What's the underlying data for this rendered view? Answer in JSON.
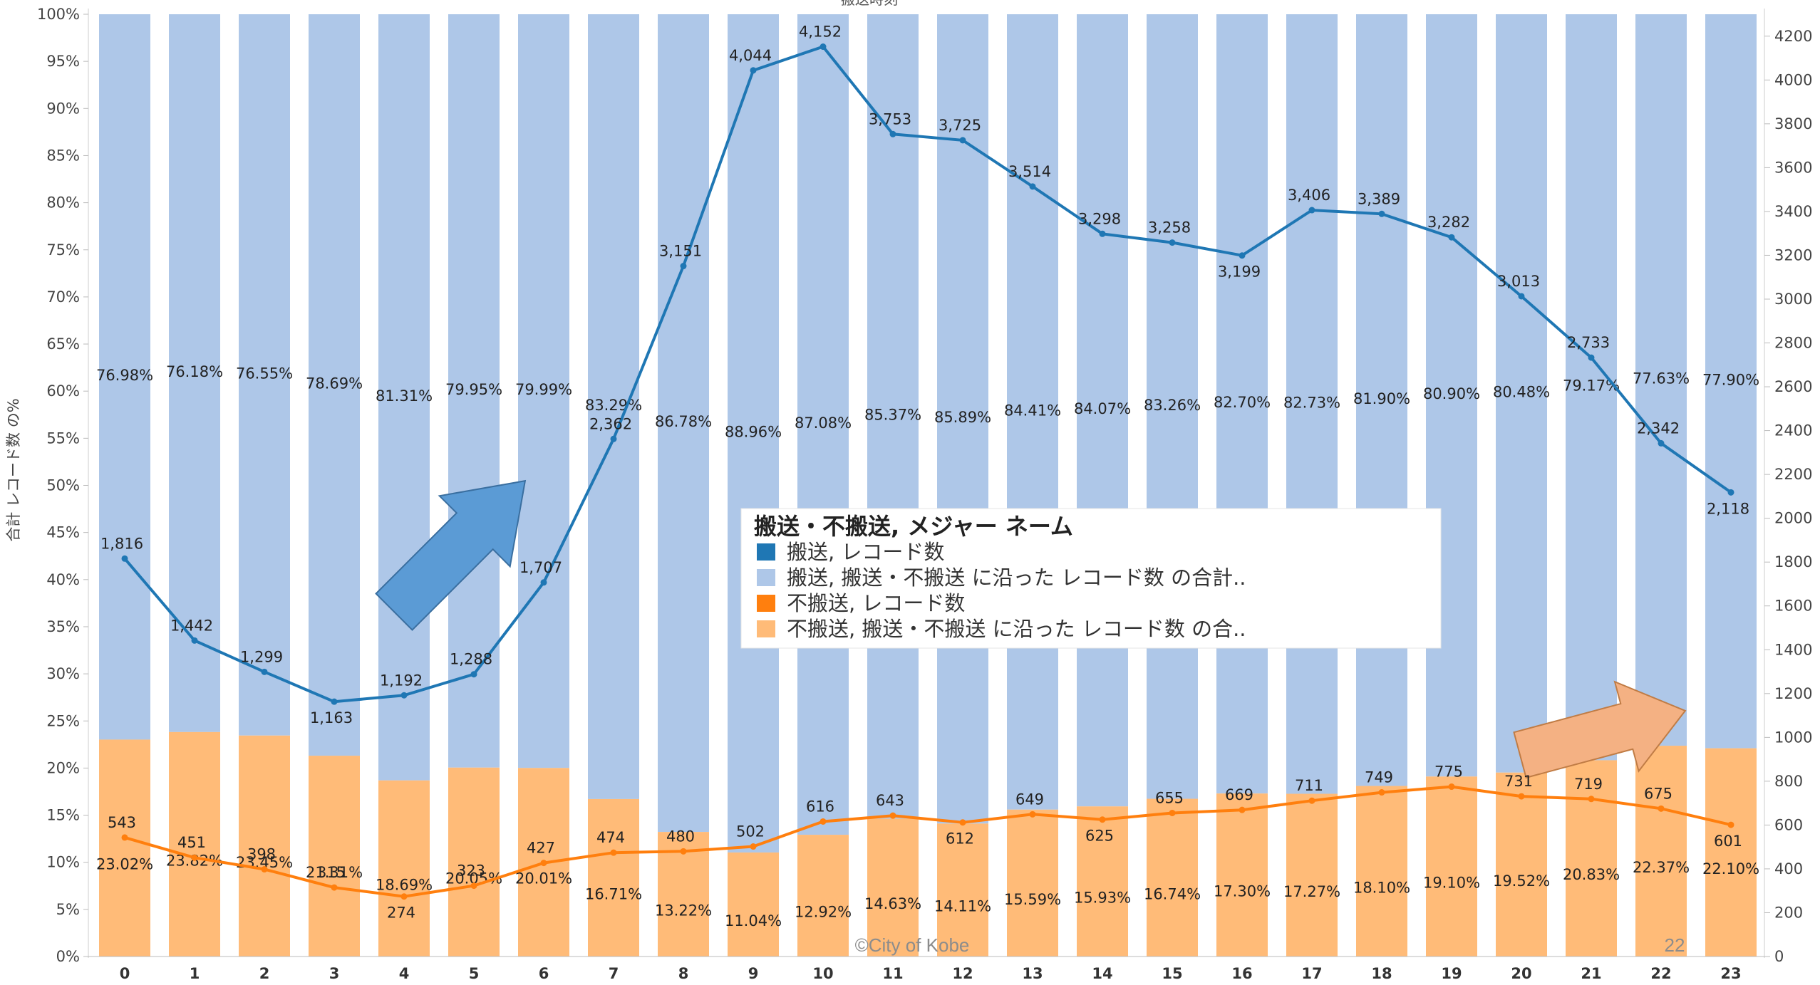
{
  "chart_data": {
    "type": "bar",
    "title": "",
    "top_title_partial": "搬送時刻",
    "xlabel": "",
    "ylabel_left": "合計 レコード数 の%",
    "ylim_left": [
      0,
      100
    ],
    "ylim_right": [
      0,
      4300
    ],
    "y_ticks_left": [
      "0%",
      "5%",
      "10%",
      "15%",
      "20%",
      "25%",
      "30%",
      "35%",
      "40%",
      "45%",
      "50%",
      "55%",
      "60%",
      "65%",
      "70%",
      "75%",
      "80%",
      "85%",
      "90%",
      "95%",
      "100%"
    ],
    "y_ticks_right": [
      "0",
      "200",
      "400",
      "600",
      "800",
      "1000",
      "1200",
      "1400",
      "1600",
      "1800",
      "2000",
      "2200",
      "2400",
      "2600",
      "2800",
      "3000",
      "3200",
      "3400",
      "3600",
      "3800",
      "4000",
      "4200"
    ],
    "categories": [
      "0",
      "1",
      "2",
      "3",
      "4",
      "5",
      "6",
      "7",
      "8",
      "9",
      "10",
      "11",
      "12",
      "13",
      "14",
      "15",
      "16",
      "17",
      "18",
      "19",
      "20",
      "21",
      "22",
      "23"
    ],
    "series": [
      {
        "name": "搬送, 搬送・不搬送 に沿った レコード数 の合計..",
        "kind": "stacked-bar-percent",
        "color": "#aec7e8",
        "values": [
          76.98,
          76.18,
          76.55,
          78.69,
          81.31,
          79.95,
          79.99,
          83.29,
          86.78,
          88.96,
          87.08,
          85.37,
          85.89,
          84.41,
          84.07,
          83.26,
          82.7,
          82.73,
          81.9,
          80.9,
          80.48,
          79.17,
          77.63,
          77.9
        ],
        "labels": [
          "76.98%",
          "76.18%",
          "76.55%",
          "78.69%",
          "81.31%",
          "79.95%",
          "79.99%",
          "83.29%",
          "86.78%",
          "88.96%",
          "87.08%",
          "85.37%",
          "85.89%",
          "84.41%",
          "84.07%",
          "83.26%",
          "82.70%",
          "82.73%",
          "81.90%",
          "80.90%",
          "80.48%",
          "79.17%",
          "77.63%",
          "77.90%"
        ]
      },
      {
        "name": "不搬送, 搬送・不搬送 に沿った レコード数 の合..",
        "kind": "stacked-bar-percent",
        "color": "#ffbb78",
        "values": [
          23.02,
          23.82,
          23.45,
          21.31,
          18.69,
          20.05,
          20.01,
          16.71,
          13.22,
          11.04,
          12.92,
          14.63,
          14.11,
          15.59,
          15.93,
          16.74,
          17.3,
          17.27,
          18.1,
          19.1,
          19.52,
          20.83,
          22.37,
          22.1
        ],
        "labels": [
          "23.02%",
          "23.82%",
          "23.45%",
          "21.31%",
          "18.69%",
          "20.05%",
          "20.01%",
          "16.71%",
          "13.22%",
          "11.04%",
          "12.92%",
          "14.63%",
          "14.11%",
          "15.59%",
          "15.93%",
          "16.74%",
          "17.30%",
          "17.27%",
          "18.10%",
          "19.10%",
          "19.52%",
          "20.83%",
          "22.37%",
          "22.10%"
        ]
      },
      {
        "name": "搬送, レコード数",
        "kind": "line-right-axis",
        "color": "#1f77b4",
        "values": [
          1816,
          1442,
          1299,
          1163,
          1192,
          1288,
          1707,
          2362,
          3151,
          4044,
          4152,
          3753,
          3725,
          3514,
          3298,
          3258,
          3199,
          3406,
          3389,
          3282,
          3013,
          2733,
          2342,
          2118
        ],
        "labels": [
          "1,816",
          "1,442",
          "1,299",
          "1,163",
          "1,192",
          "1,288",
          "1,707",
          "2,362",
          "3,151",
          "4,044",
          "4,152",
          "3,753",
          "3,725",
          "3,514",
          "3,298",
          "3,258",
          "3,199",
          "3,406",
          "3,389",
          "3,282",
          "3,013",
          "2,733",
          "2,342",
          "2,118"
        ]
      },
      {
        "name": "不搬送, レコード数",
        "kind": "line-right-axis",
        "color": "#ff7f0e",
        "values": [
          543,
          451,
          398,
          315,
          274,
          323,
          427,
          474,
          480,
          502,
          616,
          643,
          612,
          649,
          625,
          655,
          669,
          711,
          749,
          775,
          731,
          719,
          675,
          601
        ],
        "labels": [
          "543",
          "451",
          "398",
          "315",
          "274",
          "323",
          "427",
          "474",
          "480",
          "502",
          "616",
          "643",
          "612",
          "649",
          "625",
          "655",
          "669",
          "711",
          "749",
          "775",
          "731",
          "719",
          "675",
          "601"
        ]
      }
    ],
    "legend": {
      "title": "搬送・不搬送, メジャー ネーム",
      "placement": "center",
      "items": [
        {
          "label": "搬送, レコード数",
          "color": "#1f77b4"
        },
        {
          "label": "搬送, 搬送・不搬送 に沿った レコード数 の合計..",
          "color": "#aec7e8"
        },
        {
          "label": "不搬送, レコード数",
          "color": "#ff7f0e"
        },
        {
          "label": "不搬送, 搬送・不搬送 に沿った レコード数 の合..",
          "color": "#ffbb78"
        }
      ]
    },
    "annotations": {
      "arrow_up_color": "#5b9bd5",
      "arrow_right_color": "#f4b183"
    },
    "grid": false
  },
  "footer": {
    "copyright": "©City of Kobe",
    "page_number": "22"
  }
}
